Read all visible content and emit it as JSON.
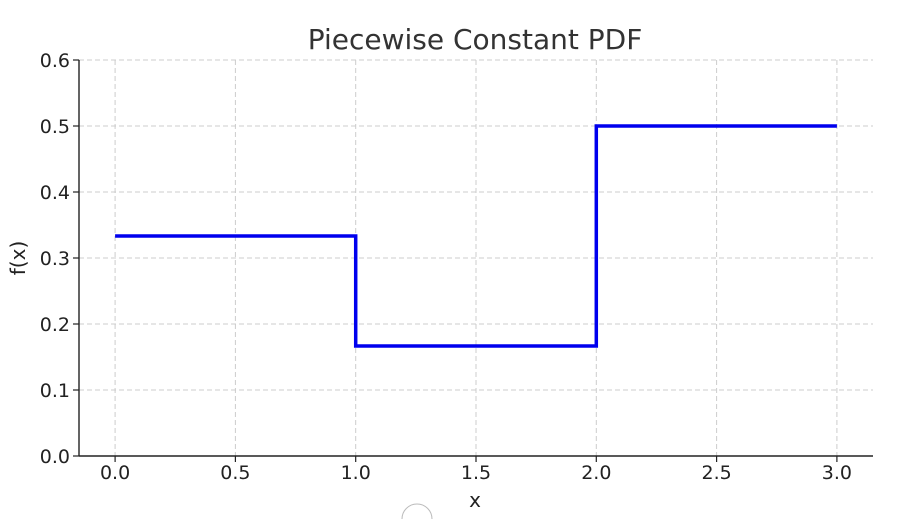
{
  "chart_data": {
    "type": "line",
    "title": "Piecewise Constant PDF",
    "xlabel": "x",
    "ylabel": "f(x)",
    "xlim": [
      -0.15,
      3.15
    ],
    "ylim": [
      0,
      0.6
    ],
    "x_ticks": [
      0.0,
      0.5,
      1.0,
      1.5,
      2.0,
      2.5,
      3.0
    ],
    "x_tick_labels": [
      "0.0",
      "0.5",
      "1.0",
      "1.5",
      "2.0",
      "2.5",
      "3.0"
    ],
    "y_ticks": [
      0.0,
      0.1,
      0.2,
      0.3,
      0.4,
      0.5,
      0.6
    ],
    "y_tick_labels": [
      "0.0",
      "0.1",
      "0.2",
      "0.3",
      "0.4",
      "0.5",
      "0.6"
    ],
    "grid": true,
    "series": [
      {
        "color": "#0000ee",
        "x": [
          0.0,
          1.0,
          1.0,
          2.0,
          2.0,
          3.0
        ],
        "y": [
          0.3333,
          0.3333,
          0.1667,
          0.1667,
          0.5,
          0.5
        ]
      }
    ]
  }
}
